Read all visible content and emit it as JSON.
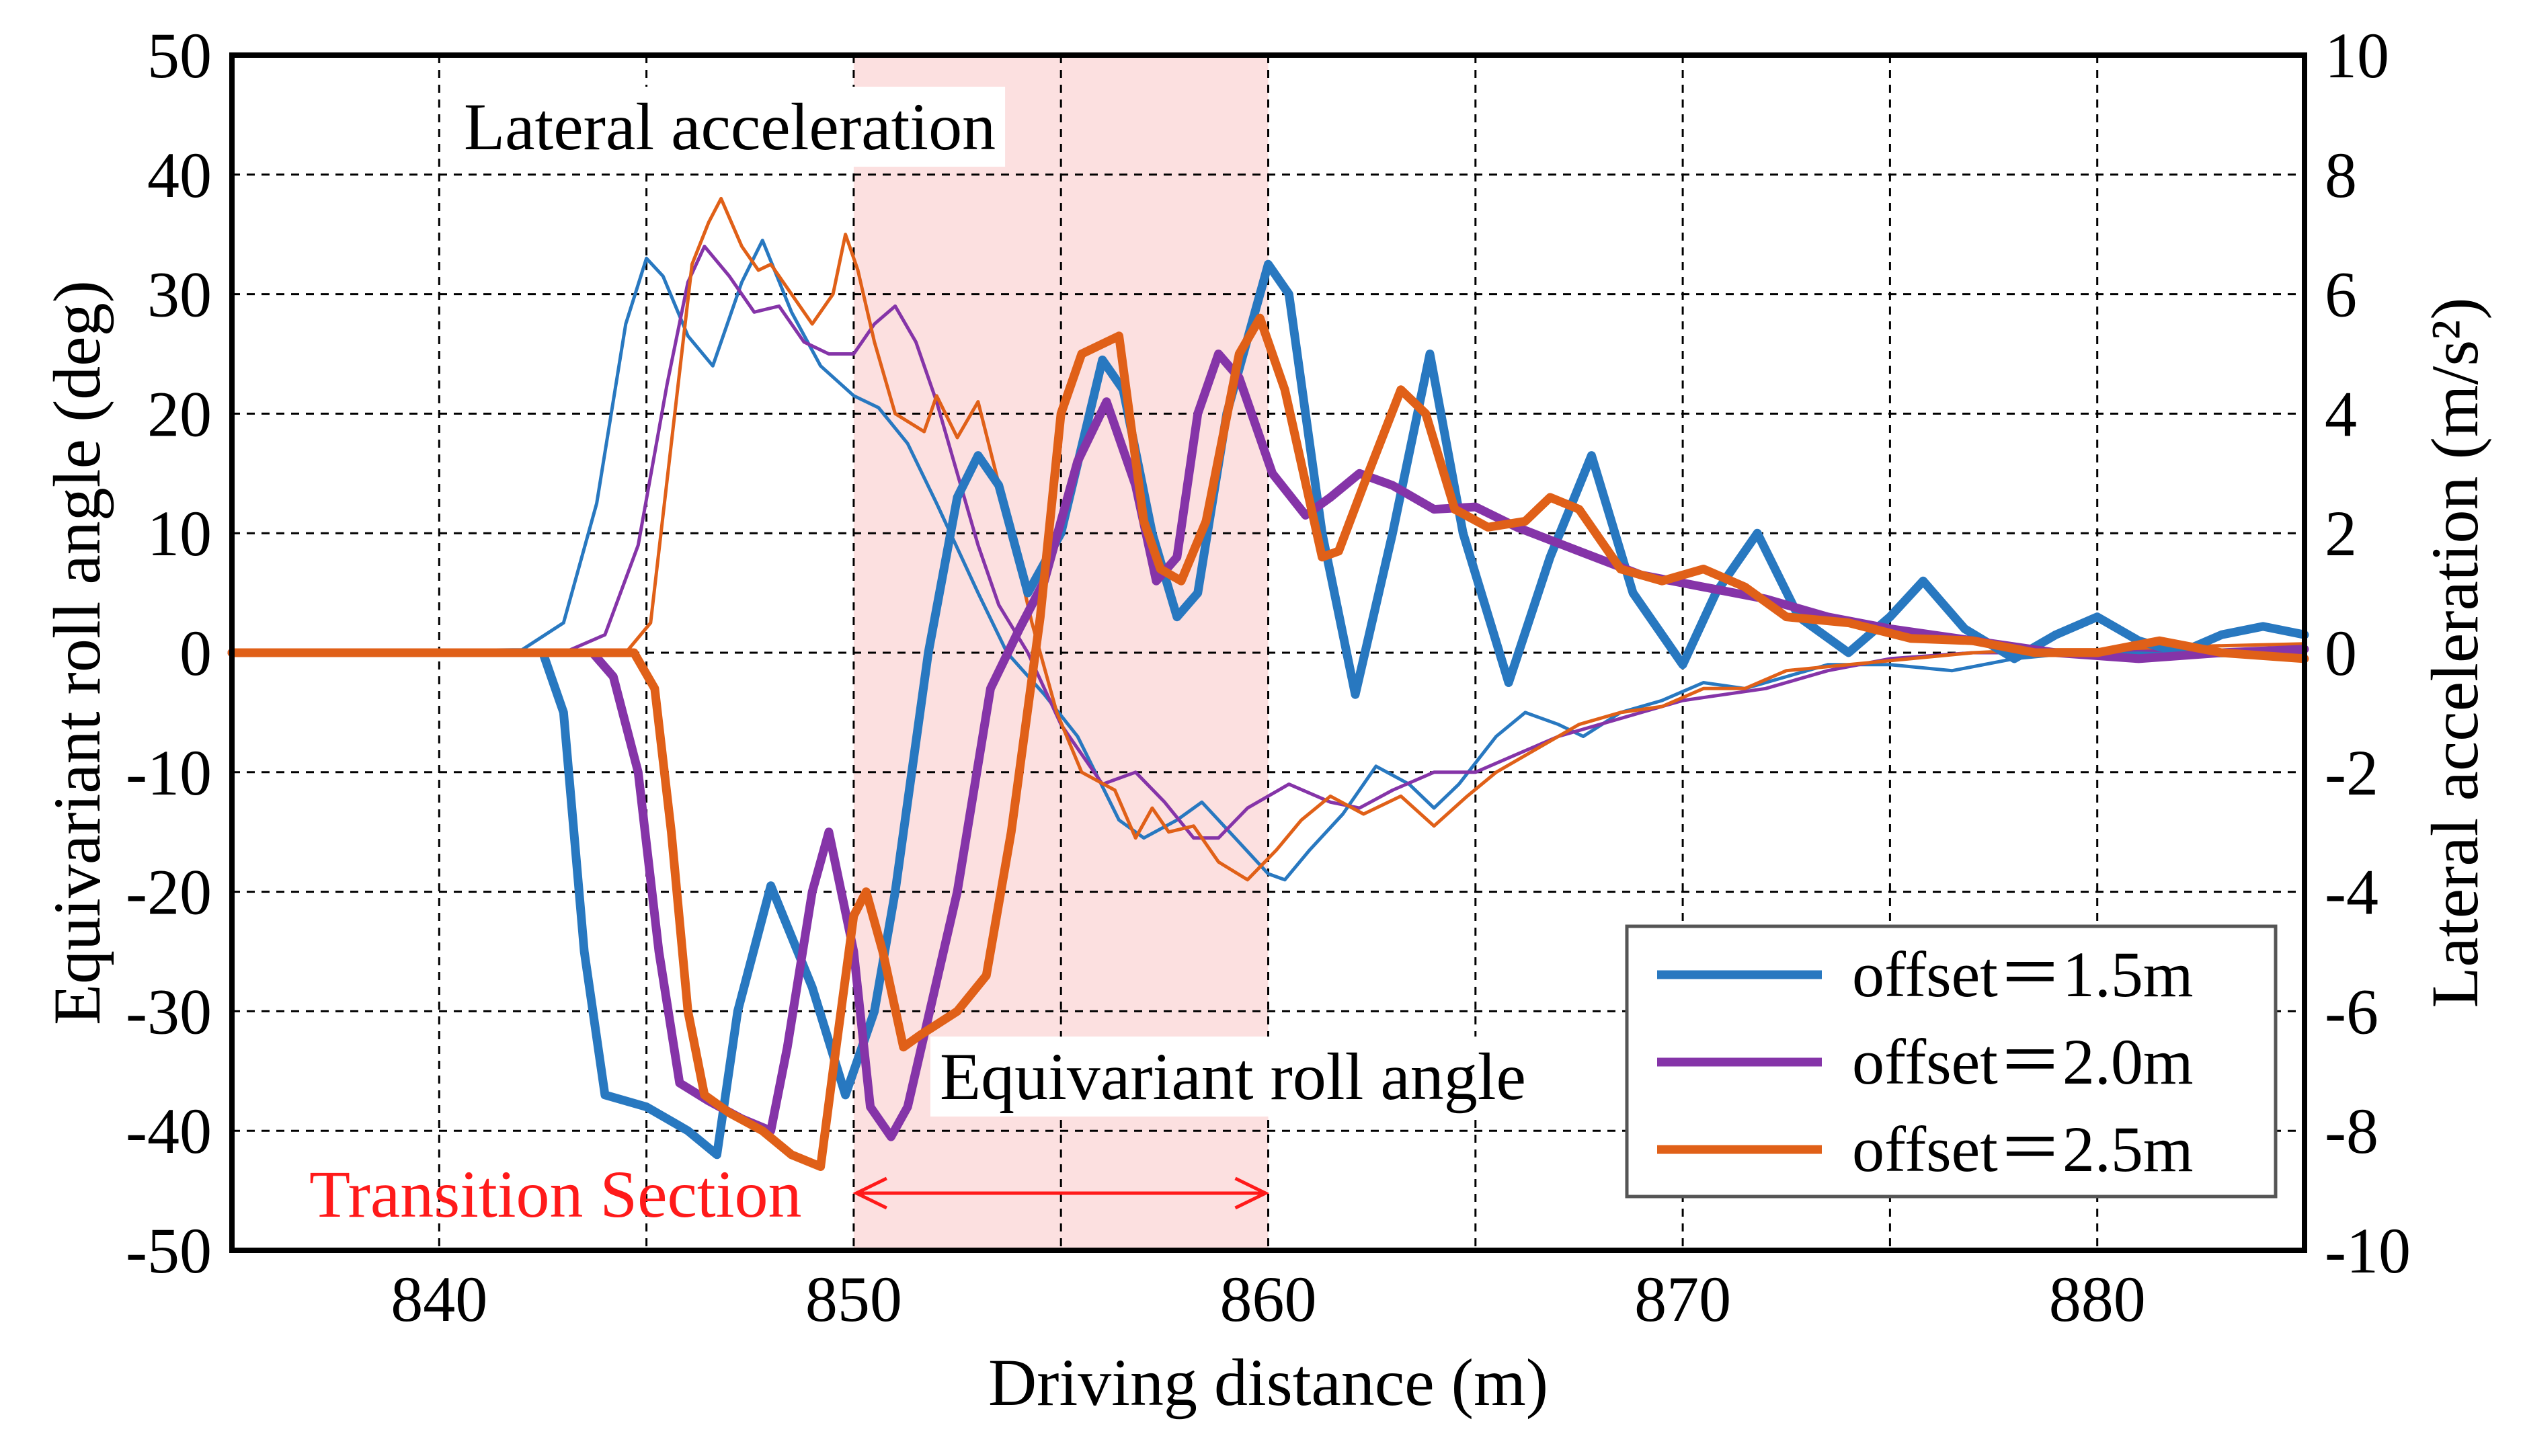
{
  "chart_data": {
    "type": "line",
    "title": "",
    "xlabel": "Driving distance (m)",
    "ylabel_left": "Equivariant roll angle (deg)",
    "ylabel_right": "Lateral acceleration (m/s²)",
    "xlim": [
      835,
      885
    ],
    "ylim_left": [
      -50,
      50
    ],
    "ylim_right": [
      -10,
      10
    ],
    "x_ticks": [
      840,
      850,
      860,
      870,
      880
    ],
    "y_ticks_left": [
      -50,
      -40,
      -30,
      -20,
      -10,
      0,
      10,
      20,
      30,
      40,
      50
    ],
    "y_ticks_right": [
      -10,
      -8,
      -6,
      -4,
      -2,
      0,
      2,
      4,
      6,
      8,
      10
    ],
    "grid": true,
    "legend_position": "bottom-right",
    "shaded_region": {
      "x_from": 850,
      "x_to": 860,
      "color": "#fce0e0"
    },
    "annotations": {
      "lateral_acceleration": "Lateral  acceleration",
      "roll_angle": "Equivariant roll angle",
      "transition": "Transition  Section"
    },
    "series": [
      {
        "name": "offset = 1.5m",
        "legend_label": "offset＝1.5m",
        "color": "#2878c0",
        "roll_angle_deg": [
          [
            835,
            0
          ],
          [
            842.5,
            0
          ],
          [
            843,
            -5
          ],
          [
            843.5,
            -25
          ],
          [
            844,
            -37
          ],
          [
            845,
            -38
          ],
          [
            846,
            -40
          ],
          [
            846.7,
            -42
          ],
          [
            847.2,
            -30
          ],
          [
            848,
            -19.5
          ],
          [
            849,
            -28
          ],
          [
            849.8,
            -37
          ],
          [
            850.5,
            -30
          ],
          [
            851,
            -20
          ],
          [
            851.8,
            0
          ],
          [
            852.5,
            13
          ],
          [
            853,
            16.5
          ],
          [
            853.5,
            14
          ],
          [
            854.2,
            5
          ],
          [
            855,
            10
          ],
          [
            856,
            24.5
          ],
          [
            856.5,
            22
          ],
          [
            857.2,
            10
          ],
          [
            857.8,
            3
          ],
          [
            858.3,
            5
          ],
          [
            859,
            20
          ],
          [
            860,
            32.5
          ],
          [
            860.5,
            30
          ],
          [
            861.3,
            10
          ],
          [
            862.1,
            -3.5
          ],
          [
            863,
            10
          ],
          [
            863.9,
            25
          ],
          [
            864.7,
            10
          ],
          [
            865.8,
            -2.5
          ],
          [
            866.8,
            8
          ],
          [
            867.8,
            16.5
          ],
          [
            868.8,
            5
          ],
          [
            870,
            -1
          ],
          [
            870.8,
            5
          ],
          [
            871.8,
            10
          ],
          [
            872.8,
            3
          ],
          [
            874,
            0
          ],
          [
            875,
            3
          ],
          [
            875.8,
            6
          ],
          [
            876.8,
            2
          ],
          [
            878,
            -0.5
          ],
          [
            879,
            1.5
          ],
          [
            880,
            3
          ],
          [
            881,
            1
          ],
          [
            882,
            0
          ],
          [
            883,
            1.5
          ],
          [
            884,
            2.2
          ],
          [
            885,
            1.5
          ]
        ],
        "lateral_accel": [
          [
            835,
            0
          ],
          [
            842,
            0.05
          ],
          [
            843,
            0.5
          ],
          [
            843.8,
            2.5
          ],
          [
            844.5,
            5.5
          ],
          [
            845,
            6.6
          ],
          [
            845.4,
            6.3
          ],
          [
            846,
            5.3
          ],
          [
            846.6,
            4.8
          ],
          [
            847.3,
            6.2
          ],
          [
            847.8,
            6.9
          ],
          [
            848.5,
            5.7
          ],
          [
            849.2,
            4.8
          ],
          [
            850,
            4.3
          ],
          [
            850.6,
            4.1
          ],
          [
            851.3,
            3.5
          ],
          [
            852,
            2.5
          ],
          [
            853,
            1
          ],
          [
            853.7,
            0
          ],
          [
            854.6,
            -0.7
          ],
          [
            855.4,
            -1.4
          ],
          [
            856.4,
            -2.8
          ],
          [
            857,
            -3.1
          ],
          [
            857.8,
            -2.8
          ],
          [
            858.4,
            -2.5
          ],
          [
            859.2,
            -3.1
          ],
          [
            860,
            -3.7
          ],
          [
            860.4,
            -3.8
          ],
          [
            861,
            -3.3
          ],
          [
            861.8,
            -2.7
          ],
          [
            862.6,
            -1.9
          ],
          [
            863.4,
            -2.2
          ],
          [
            864,
            -2.6
          ],
          [
            864.6,
            -2.2
          ],
          [
            865.5,
            -1.4
          ],
          [
            866.2,
            -1
          ],
          [
            867,
            -1.2
          ],
          [
            867.6,
            -1.4
          ],
          [
            868.5,
            -1
          ],
          [
            869.5,
            -0.8
          ],
          [
            870.5,
            -0.5
          ],
          [
            871.5,
            -0.6
          ],
          [
            872.5,
            -0.4
          ],
          [
            873.5,
            -0.2
          ],
          [
            875,
            -0.2
          ],
          [
            876.5,
            -0.3
          ],
          [
            878,
            -0.1
          ],
          [
            879.5,
            0
          ],
          [
            881,
            0
          ],
          [
            883,
            -0.05
          ],
          [
            885,
            0
          ]
        ]
      },
      {
        "name": "offset = 2.0m",
        "legend_label": "offset＝2.0m",
        "color": "#8534a8",
        "roll_angle_deg": [
          [
            835,
            0
          ],
          [
            843.7,
            0
          ],
          [
            844.2,
            -2
          ],
          [
            844.8,
            -10
          ],
          [
            845.3,
            -25
          ],
          [
            845.8,
            -36
          ],
          [
            846.5,
            -37.5
          ],
          [
            847.3,
            -39
          ],
          [
            848,
            -40
          ],
          [
            848.4,
            -33
          ],
          [
            849,
            -20
          ],
          [
            849.4,
            -15
          ],
          [
            850,
            -25
          ],
          [
            850.4,
            -38
          ],
          [
            850.9,
            -40.5
          ],
          [
            851.3,
            -38
          ],
          [
            852.5,
            -20
          ],
          [
            853.3,
            -3
          ],
          [
            854,
            2
          ],
          [
            854.6,
            6
          ],
          [
            855.4,
            16
          ],
          [
            856.1,
            21
          ],
          [
            856.8,
            14
          ],
          [
            857.3,
            6
          ],
          [
            857.8,
            8
          ],
          [
            858.3,
            20
          ],
          [
            858.8,
            25
          ],
          [
            859.3,
            23
          ],
          [
            860.1,
            15
          ],
          [
            860.9,
            11.5
          ],
          [
            861.5,
            13
          ],
          [
            862.2,
            15
          ],
          [
            863,
            14
          ],
          [
            864,
            12
          ],
          [
            865,
            12.2
          ],
          [
            866,
            10.5
          ],
          [
            867.5,
            8.5
          ],
          [
            869,
            6.5
          ],
          [
            870.5,
            5.5
          ],
          [
            872,
            4.5
          ],
          [
            873.5,
            3
          ],
          [
            875,
            2
          ],
          [
            877,
            1
          ],
          [
            879,
            0
          ],
          [
            881,
            -0.5
          ],
          [
            883,
            0
          ],
          [
            885,
            0.3
          ]
        ],
        "lateral_accel": [
          [
            835,
            0
          ],
          [
            843,
            0
          ],
          [
            844,
            0.3
          ],
          [
            844.8,
            1.8
          ],
          [
            845.5,
            4.5
          ],
          [
            846,
            6.2
          ],
          [
            846.4,
            6.8
          ],
          [
            847,
            6.3
          ],
          [
            847.6,
            5.7
          ],
          [
            848.2,
            5.8
          ],
          [
            848.8,
            5.2
          ],
          [
            849.4,
            5
          ],
          [
            850,
            5
          ],
          [
            850.5,
            5.5
          ],
          [
            851,
            5.8
          ],
          [
            851.5,
            5.2
          ],
          [
            852,
            4.2
          ],
          [
            852.5,
            3
          ],
          [
            853,
            1.8
          ],
          [
            853.5,
            0.8
          ],
          [
            854.2,
            0
          ],
          [
            855,
            -1.2
          ],
          [
            856,
            -2.2
          ],
          [
            856.8,
            -2
          ],
          [
            857.5,
            -2.5
          ],
          [
            858.2,
            -3.1
          ],
          [
            858.8,
            -3.1
          ],
          [
            859.5,
            -2.6
          ],
          [
            860.5,
            -2.2
          ],
          [
            861.5,
            -2.5
          ],
          [
            862.2,
            -2.6
          ],
          [
            863,
            -2.3
          ],
          [
            864,
            -2
          ],
          [
            865,
            -2
          ],
          [
            866,
            -1.7
          ],
          [
            867,
            -1.4
          ],
          [
            868,
            -1.2
          ],
          [
            869,
            -1
          ],
          [
            870,
            -0.8
          ],
          [
            871,
            -0.7
          ],
          [
            872,
            -0.6
          ],
          [
            873.5,
            -0.3
          ],
          [
            875,
            -0.1
          ],
          [
            877,
            0
          ],
          [
            879,
            0
          ],
          [
            881,
            0.05
          ],
          [
            883,
            0
          ],
          [
            885,
            -0.05
          ]
        ]
      },
      {
        "name": "offset = 2.5m",
        "legend_label": "offset＝2.5m",
        "color": "#e06018",
        "roll_angle_deg": [
          [
            835,
            0
          ],
          [
            844.7,
            0
          ],
          [
            845.2,
            -3
          ],
          [
            845.6,
            -15
          ],
          [
            846,
            -30
          ],
          [
            846.4,
            -37
          ],
          [
            847,
            -38.5
          ],
          [
            847.8,
            -40
          ],
          [
            848.5,
            -42
          ],
          [
            849.2,
            -43
          ],
          [
            849.5,
            -35
          ],
          [
            850,
            -22
          ],
          [
            850.3,
            -20
          ],
          [
            850.7,
            -25
          ],
          [
            851.2,
            -33
          ],
          [
            851.6,
            -32
          ],
          [
            852.5,
            -30
          ],
          [
            853.2,
            -27
          ],
          [
            853.8,
            -15
          ],
          [
            854.5,
            3
          ],
          [
            855,
            20
          ],
          [
            855.5,
            25
          ],
          [
            856.4,
            26.5
          ],
          [
            857,
            11
          ],
          [
            857.4,
            7
          ],
          [
            857.9,
            6
          ],
          [
            858.5,
            11
          ],
          [
            859.3,
            25
          ],
          [
            859.8,
            28
          ],
          [
            860.4,
            22
          ],
          [
            861.3,
            8
          ],
          [
            861.7,
            8.5
          ],
          [
            862.3,
            14
          ],
          [
            863.2,
            22
          ],
          [
            863.8,
            20
          ],
          [
            864.5,
            12
          ],
          [
            865.3,
            10.5
          ],
          [
            866.2,
            11
          ],
          [
            866.8,
            13
          ],
          [
            867.5,
            12
          ],
          [
            868.5,
            7
          ],
          [
            869.5,
            6
          ],
          [
            870.5,
            7
          ],
          [
            871.5,
            5.5
          ],
          [
            872.5,
            3
          ],
          [
            874,
            2.5
          ],
          [
            875.5,
            1.2
          ],
          [
            877,
            1
          ],
          [
            878.5,
            0
          ],
          [
            880,
            0
          ],
          [
            881.5,
            1
          ],
          [
            883,
            0
          ],
          [
            885,
            -0.5
          ]
        ],
        "lateral_accel": [
          [
            835,
            0
          ],
          [
            844.5,
            0
          ],
          [
            845.1,
            0.5
          ],
          [
            845.6,
            3.5
          ],
          [
            846.1,
            6.5
          ],
          [
            846.5,
            7.2
          ],
          [
            846.8,
            7.6
          ],
          [
            847.3,
            6.8
          ],
          [
            847.7,
            6.4
          ],
          [
            848,
            6.5
          ],
          [
            848.5,
            6
          ],
          [
            849,
            5.5
          ],
          [
            849.5,
            6
          ],
          [
            849.8,
            7
          ],
          [
            850.1,
            6.4
          ],
          [
            850.5,
            5.2
          ],
          [
            851,
            4
          ],
          [
            851.7,
            3.7
          ],
          [
            852,
            4.3
          ],
          [
            852.5,
            3.6
          ],
          [
            853,
            4.2
          ],
          [
            853.4,
            3.1
          ],
          [
            853.8,
            2
          ],
          [
            854.3,
            0.5
          ],
          [
            854.9,
            -1
          ],
          [
            855.5,
            -2
          ],
          [
            856.3,
            -2.3
          ],
          [
            856.8,
            -3.1
          ],
          [
            857.2,
            -2.6
          ],
          [
            857.6,
            -3
          ],
          [
            858.2,
            -2.9
          ],
          [
            858.8,
            -3.5
          ],
          [
            859.5,
            -3.8
          ],
          [
            860.2,
            -3.3
          ],
          [
            860.8,
            -2.8
          ],
          [
            861.5,
            -2.4
          ],
          [
            862.3,
            -2.7
          ],
          [
            863.2,
            -2.4
          ],
          [
            864,
            -2.9
          ],
          [
            864.8,
            -2.4
          ],
          [
            865.5,
            -2
          ],
          [
            866.5,
            -1.6
          ],
          [
            867.5,
            -1.2
          ],
          [
            868.5,
            -1
          ],
          [
            869.5,
            -0.9
          ],
          [
            870.5,
            -0.6
          ],
          [
            871.5,
            -0.6
          ],
          [
            872.5,
            -0.3
          ],
          [
            874,
            -0.2
          ],
          [
            875.5,
            -0.1
          ],
          [
            877,
            0
          ],
          [
            878.5,
            0.05
          ],
          [
            880,
            0.05
          ],
          [
            882,
            0.1
          ],
          [
            885,
            0.15
          ]
        ]
      }
    ]
  }
}
